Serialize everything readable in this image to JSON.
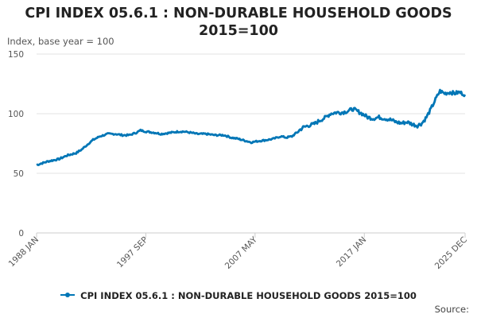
{
  "chart_data": {
    "type": "line",
    "title": "CPI INDEX 05.6.1 : NON-DURABLE HOUSEHOLD GOODS 2015=100",
    "title_lines": [
      "CPI INDEX 05.6.1 : NON-DURABLE HOUSEHOLD GOODS",
      "2015=100"
    ],
    "ylabel": "Index, base year = 100",
    "xlabel": "",
    "ylim": [
      0,
      150
    ],
    "y_ticks": [
      0,
      50,
      100,
      150
    ],
    "x_range": [
      1988.0,
      2025.917
    ],
    "x_tick_labels": [
      {
        "label": "1988 JAN",
        "year": 1988.0
      },
      {
        "label": "1997 SEP",
        "year": 1997.667
      },
      {
        "label": "2007 MAY",
        "year": 2007.333
      },
      {
        "label": "2017 JAN",
        "year": 2017.0
      },
      {
        "label": "2025 DEC",
        "year": 2025.917
      }
    ],
    "grid": true,
    "legend_position": "bottom",
    "series": [
      {
        "name": "CPI INDEX 05.6.1 : NON-DURABLE HOUSEHOLD GOODS 2015=100",
        "color": "#0076b6",
        "points": [
          [
            1988.0,
            57
          ],
          [
            1989.0,
            60
          ],
          [
            1990.0,
            62
          ],
          [
            1990.7,
            65
          ],
          [
            1991.5,
            67
          ],
          [
            1992.0,
            70
          ],
          [
            1992.6,
            75
          ],
          [
            1993.0,
            78
          ],
          [
            1993.6,
            81
          ],
          [
            1994.3,
            83
          ],
          [
            1995.0,
            83
          ],
          [
            1995.6,
            82
          ],
          [
            1996.2,
            82
          ],
          [
            1996.8,
            84
          ],
          [
            1997.2,
            86
          ],
          [
            1997.7,
            85
          ],
          [
            1998.5,
            84
          ],
          [
            1999.0,
            83
          ],
          [
            1999.8,
            84
          ],
          [
            2000.6,
            85
          ],
          [
            2001.0,
            85
          ],
          [
            2001.7,
            84
          ],
          [
            2002.2,
            83
          ],
          [
            2003.0,
            83
          ],
          [
            2003.8,
            82
          ],
          [
            2004.6,
            82
          ],
          [
            2005.2,
            80
          ],
          [
            2005.8,
            79
          ],
          [
            2006.6,
            77
          ],
          [
            2007.0,
            76
          ],
          [
            2007.6,
            77
          ],
          [
            2008.4,
            78
          ],
          [
            2009.0,
            79
          ],
          [
            2009.6,
            81
          ],
          [
            2010.1,
            80
          ],
          [
            2010.6,
            81
          ],
          [
            2011.0,
            84
          ],
          [
            2011.5,
            88
          ],
          [
            2012.0,
            90
          ],
          [
            2012.5,
            91
          ],
          [
            2013.0,
            94
          ],
          [
            2013.6,
            97
          ],
          [
            2014.0,
            100
          ],
          [
            2014.5,
            101
          ],
          [
            2015.0,
            101
          ],
          [
            2015.5,
            102
          ],
          [
            2016.0,
            104
          ],
          [
            2016.4,
            102
          ],
          [
            2016.8,
            100
          ],
          [
            2017.3,
            97
          ],
          [
            2017.8,
            96
          ],
          [
            2018.3,
            97
          ],
          [
            2018.8,
            96
          ],
          [
            2019.3,
            95
          ],
          [
            2019.8,
            93
          ],
          [
            2020.3,
            92
          ],
          [
            2020.8,
            93
          ],
          [
            2021.3,
            91
          ],
          [
            2021.7,
            90
          ],
          [
            2022.1,
            92
          ],
          [
            2022.5,
            97
          ],
          [
            2022.9,
            104
          ],
          [
            2023.3,
            112
          ],
          [
            2023.7,
            119
          ],
          [
            2024.1,
            117
          ],
          [
            2024.6,
            118
          ],
          [
            2025.0,
            117
          ],
          [
            2025.4,
            118
          ],
          [
            2025.917,
            116
          ]
        ]
      }
    ]
  },
  "legend_label": "CPI INDEX 05.6.1 : NON-DURABLE HOUSEHOLD GOODS 2015=100",
  "source_label": "Source:"
}
